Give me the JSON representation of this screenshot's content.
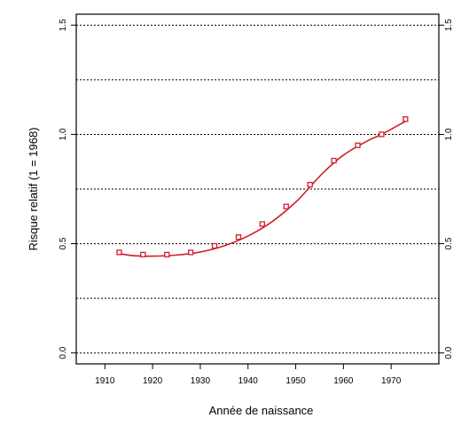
{
  "chart_data": {
    "type": "line",
    "title": "",
    "xlabel": "Année de naissance",
    "ylabel": "Risque relatif (1 = 1968)",
    "xlim": [
      1904,
      1980
    ],
    "ylim": [
      -0.05,
      1.55
    ],
    "x_ticks": [
      1910,
      1920,
      1930,
      1940,
      1950,
      1960,
      1970
    ],
    "x_tick_labels": [
      "1910",
      "1920",
      "1930",
      "1940",
      "1950",
      "1960",
      "1970"
    ],
    "y_ticks": [
      0.0,
      0.5,
      1.0,
      1.5
    ],
    "y_tick_labels": [
      "0.0",
      "0.5",
      "1.0",
      "1.5"
    ],
    "y_minor_gridlines": [
      0.25,
      0.75,
      1.25
    ],
    "grid": "horizontal dotted",
    "right_axis_mirrors_left": true,
    "series": [
      {
        "color": "#d0202a",
        "marker": "square",
        "points": {
          "x": [
            1913,
            1918,
            1923,
            1928,
            1933,
            1938,
            1943,
            1948,
            1953,
            1958,
            1963,
            1968,
            1973
          ],
          "y": [
            0.46,
            0.45,
            0.45,
            0.46,
            0.49,
            0.53,
            0.59,
            0.67,
            0.77,
            0.88,
            0.95,
            1.0,
            1.07
          ]
        },
        "smooth": {
          "x": [
            1913,
            1916,
            1920,
            1925,
            1930,
            1935,
            1940,
            1945,
            1950,
            1953,
            1956,
            1960,
            1965,
            1968,
            1973
          ],
          "y": [
            0.455,
            0.445,
            0.443,
            0.448,
            0.462,
            0.49,
            0.535,
            0.6,
            0.69,
            0.76,
            0.83,
            0.905,
            0.97,
            1.0,
            1.06
          ]
        }
      }
    ]
  }
}
